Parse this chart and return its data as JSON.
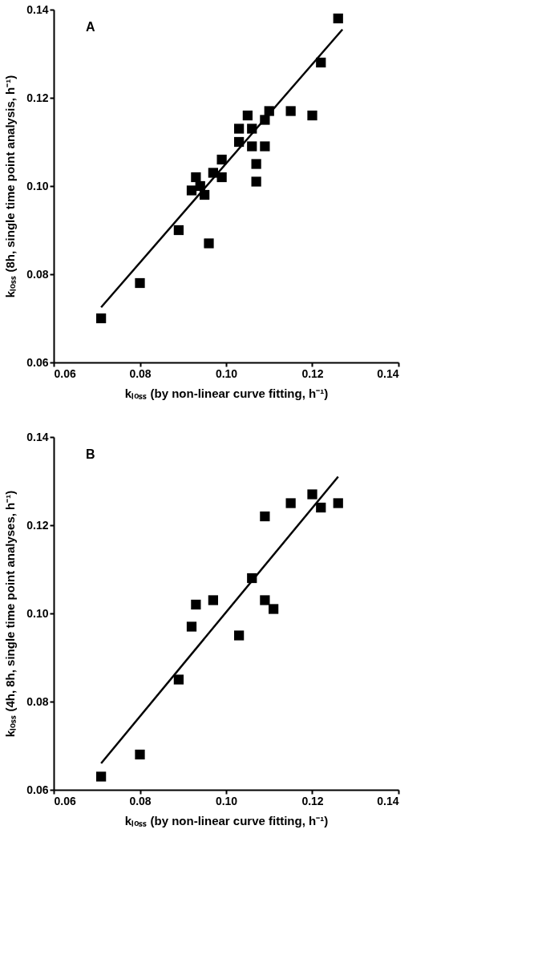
{
  "chart_data": [
    {
      "type": "scatter",
      "annotations": [
        "A"
      ],
      "xlabel": "kₗₒₛₛ (by non-linear curve fitting, h⁻¹)",
      "ylabel": "kₗₒₛₛ (8h, single time point analysis, h⁻¹)",
      "xlim": [
        0.06,
        0.14
      ],
      "ylim": [
        0.06,
        0.14
      ],
      "xticks": [
        {
          "value": 0.06,
          "label": "0.06"
        },
        {
          "value": 0.08,
          "label": "0.08"
        },
        {
          "value": 0.1,
          "label": "0.10"
        },
        {
          "value": 0.12,
          "label": "0.12"
        },
        {
          "value": 0.14,
          "label": "0.14"
        }
      ],
      "yticks": [
        {
          "value": 0.06,
          "label": "0.06"
        },
        {
          "value": 0.08,
          "label": "0.08"
        },
        {
          "value": 0.1,
          "label": "0.10"
        },
        {
          "value": 0.12,
          "label": "0.12"
        },
        {
          "value": 0.14,
          "label": "0.14"
        }
      ],
      "grid": false,
      "series": [
        {
          "type": "scatter",
          "marker": "square",
          "color": "#000000",
          "x": [
            0.071,
            0.08,
            0.089,
            0.092,
            0.093,
            0.094,
            0.095,
            0.096,
            0.097,
            0.099,
            0.099,
            0.103,
            0.103,
            0.105,
            0.106,
            0.106,
            0.107,
            0.107,
            0.109,
            0.109,
            0.11,
            0.115,
            0.12,
            0.122,
            0.126
          ],
          "values": [
            0.07,
            0.078,
            0.09,
            0.099,
            0.102,
            0.1,
            0.098,
            0.087,
            0.103,
            0.106,
            0.102,
            0.113,
            0.11,
            0.116,
            0.113,
            0.109,
            0.105,
            0.101,
            0.115,
            0.109,
            0.117,
            0.117,
            0.116,
            0.128,
            0.138
          ]
        },
        {
          "type": "line",
          "marker": "none",
          "line_style": "solid",
          "color": "#000000",
          "x": [
            0.071,
            0.127
          ],
          "values": [
            0.0725,
            0.1355
          ]
        }
      ]
    },
    {
      "type": "scatter",
      "annotations": [
        "B"
      ],
      "xlabel": "kₗₒₛₛ (by non-linear curve fitting, h⁻¹)",
      "ylabel": "kₗₒₛₛ (4h, 8h, single time point analyses, h⁻¹)",
      "xlim": [
        0.06,
        0.14
      ],
      "ylim": [
        0.06,
        0.14
      ],
      "xticks": [
        {
          "value": 0.06,
          "label": "0.06"
        },
        {
          "value": 0.08,
          "label": "0.08"
        },
        {
          "value": 0.1,
          "label": "0.10"
        },
        {
          "value": 0.12,
          "label": "0.12"
        },
        {
          "value": 0.14,
          "label": "0.14"
        }
      ],
      "yticks": [
        {
          "value": 0.06,
          "label": "0.06"
        },
        {
          "value": 0.08,
          "label": "0.08"
        },
        {
          "value": 0.1,
          "label": "0.10"
        },
        {
          "value": 0.12,
          "label": "0.12"
        },
        {
          "value": 0.14,
          "label": "0.14"
        }
      ],
      "grid": false,
      "series": [
        {
          "type": "scatter",
          "marker": "square",
          "color": "#000000",
          "x": [
            0.071,
            0.08,
            0.089,
            0.092,
            0.093,
            0.097,
            0.103,
            0.106,
            0.109,
            0.109,
            0.111,
            0.115,
            0.12,
            0.122,
            0.126
          ],
          "values": [
            0.063,
            0.068,
            0.085,
            0.097,
            0.102,
            0.103,
            0.095,
            0.108,
            0.122,
            0.103,
            0.101,
            0.125,
            0.127,
            0.124,
            0.125
          ]
        },
        {
          "type": "line",
          "marker": "none",
          "line_style": "solid",
          "color": "#000000",
          "x": [
            0.071,
            0.126
          ],
          "values": [
            0.066,
            0.131
          ]
        }
      ]
    }
  ]
}
